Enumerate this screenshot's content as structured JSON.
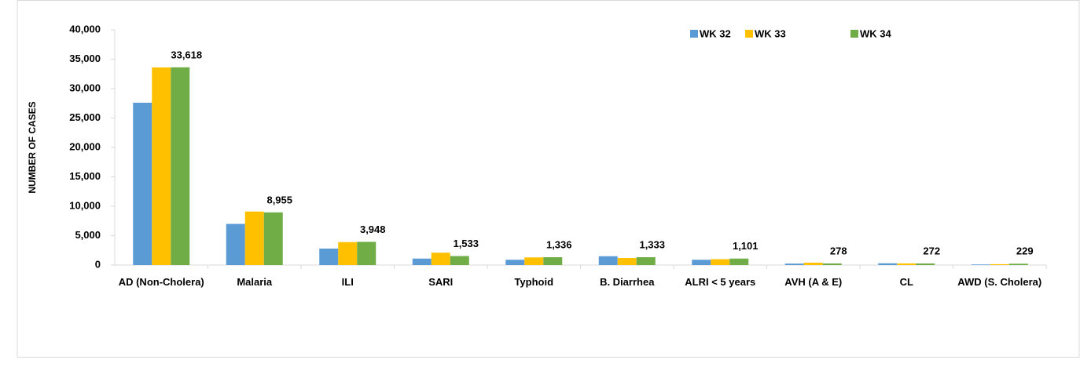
{
  "chart_data": {
    "type": "bar",
    "y_axis_label": "NUMBER OF CASES",
    "categories": [
      "AD (Non-Cholera)",
      "Malaria",
      "ILI",
      "SARI",
      "Typhoid",
      "B. Diarrhea",
      "ALRI < 5 years",
      "AVH (A & E)",
      "CL",
      "AWD (S. Cholera)"
    ],
    "series": [
      {
        "name": "WK 32",
        "color": "#5b9bd5",
        "values": [
          27600,
          7000,
          2800,
          1100,
          900,
          1500,
          900,
          250,
          300,
          100
        ]
      },
      {
        "name": "WK 33",
        "color": "#ffc000",
        "values": [
          33600,
          9100,
          3900,
          2100,
          1300,
          1200,
          1000,
          400,
          280,
          150
        ]
      },
      {
        "name": "WK 34",
        "color": "#70ad47",
        "values": [
          33618,
          8955,
          3948,
          1533,
          1336,
          1333,
          1101,
          278,
          272,
          229
        ],
        "value_labels": [
          "33,618",
          "8,955",
          "3,948",
          "1,533",
          "1,336",
          "1,333",
          "1,101",
          "278",
          "272",
          "229"
        ]
      }
    ],
    "ylim": [
      0,
      40000
    ],
    "yticks": [
      0,
      {
        "value": 5000,
        "label": "5,000"
      },
      {
        "value": 10000,
        "label": "10,000"
      },
      {
        "value": 15000,
        "label": "15,000"
      },
      {
        "value": 20000,
        "label": "20,000"
      },
      {
        "value": 25000,
        "label": "25,000"
      },
      {
        "value": 30000,
        "label": "30,000"
      },
      {
        "value": 35000,
        "label": "35,000"
      },
      {
        "value": 40000,
        "label": "40,000"
      }
    ],
    "legend": "top-right",
    "grid": false
  }
}
